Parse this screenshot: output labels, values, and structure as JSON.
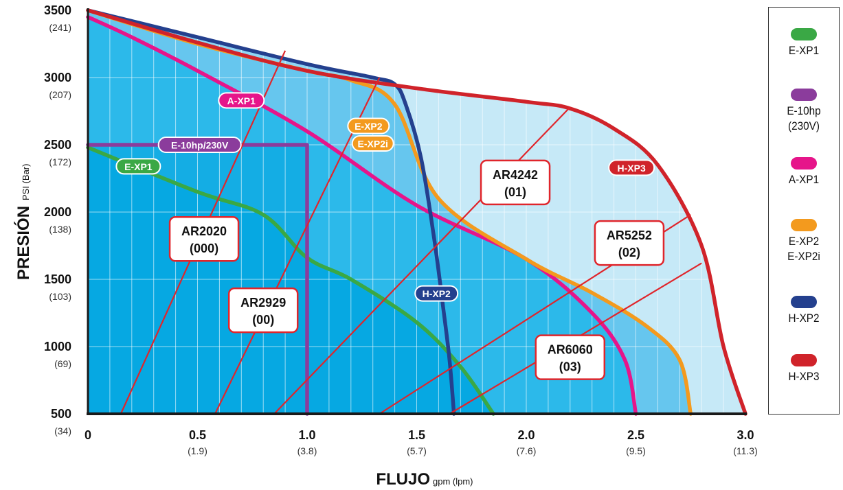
{
  "chart_data": {
    "type": "line",
    "xlabel": "FLUJO",
    "xunit": "gpm (lpm)",
    "ylabel": "PRESIÓN",
    "yunit": "PSI (Bar)",
    "xlim": [
      0,
      3.0
    ],
    "ylim": [
      500,
      3500
    ],
    "x_ticks": [
      {
        "value": 0,
        "label": "0",
        "sub": ""
      },
      {
        "value": 0.5,
        "label": "0.5",
        "sub": "(1.9)"
      },
      {
        "value": 1.0,
        "label": "1.0",
        "sub": "(3.8)"
      },
      {
        "value": 1.5,
        "label": "1.5",
        "sub": "(5.7)"
      },
      {
        "value": 2.0,
        "label": "2.0",
        "sub": "(7.6)"
      },
      {
        "value": 2.5,
        "label": "2.5",
        "sub": "(9.5)"
      },
      {
        "value": 3.0,
        "label": "3.0",
        "sub": "(11.3)"
      }
    ],
    "y_ticks": [
      {
        "value": 500,
        "label": "500",
        "sub": "(34)"
      },
      {
        "value": 1000,
        "label": "1000",
        "sub": "(69)"
      },
      {
        "value": 1500,
        "label": "1500",
        "sub": "(103)"
      },
      {
        "value": 2000,
        "label": "2000",
        "sub": "(138)"
      },
      {
        "value": 2500,
        "label": "2500",
        "sub": "(172)"
      },
      {
        "value": 3000,
        "label": "3000",
        "sub": "(207)"
      },
      {
        "value": 3500,
        "label": "3500",
        "sub": "(241)"
      }
    ],
    "grid": true,
    "legend_position": "right",
    "series": [
      {
        "name": "H-XP3",
        "label": "H-XP3",
        "color": "#d0232a",
        "fill": "#c6e9f7",
        "x": [
          0,
          0.5,
          1.0,
          1.5,
          2.0,
          2.2,
          2.4,
          2.6,
          2.8,
          2.9,
          3.0
        ],
        "y": [
          3500,
          3260,
          3050,
          2920,
          2820,
          2770,
          2620,
          2350,
          1750,
          1000,
          500
        ]
      },
      {
        "name": "H-XP2",
        "label": "H-XP2",
        "color": "#24408e",
        "fill": "#8fd6f4",
        "x": [
          0,
          0.5,
          1.0,
          1.3,
          1.4,
          1.45,
          1.52,
          1.58,
          1.62,
          1.65,
          1.67
        ],
        "y": [
          3500,
          3300,
          3100,
          3000,
          2950,
          2800,
          2400,
          1800,
          1300,
          900,
          500
        ]
      },
      {
        "name": "E-XP2",
        "label": "E-XP2 / E-XP2i",
        "color": "#f39a1e",
        "fill": "#66c6ee",
        "x": [
          0,
          0.5,
          1.0,
          1.2,
          1.4,
          1.6,
          2.0,
          2.3,
          2.55,
          2.7,
          2.75
        ],
        "y": [
          3500,
          3250,
          3050,
          2980,
          2800,
          2100,
          1650,
          1400,
          1150,
          900,
          500
        ]
      },
      {
        "name": "A-XP1",
        "label": "A-XP1",
        "color": "#e6158a",
        "fill": "#2cb9ea",
        "x": [
          0,
          0.2,
          0.5,
          1.0,
          1.5,
          2.0,
          2.3,
          2.45,
          2.5
        ],
        "y": [
          3450,
          3300,
          3050,
          2600,
          2050,
          1650,
          1250,
          900,
          500
        ]
      },
      {
        "name": "E-10hp",
        "label": "E-10hp/230V",
        "color": "#8b3c9c",
        "fill": "#14ade4",
        "x": [
          0,
          1.0,
          1.0
        ],
        "y": [
          2500,
          2500,
          500
        ]
      },
      {
        "name": "E-XP1",
        "label": "E-XP1",
        "color": "#3aa845",
        "fill": "#06a8e2",
        "x": [
          0,
          0.5,
          0.8,
          1.0,
          1.2,
          1.5,
          1.7,
          1.85
        ],
        "y": [
          2480,
          2150,
          1980,
          1660,
          1500,
          1180,
          850,
          500
        ]
      }
    ],
    "nozzle_lines": [
      {
        "name": "AR2020",
        "label1": "AR2020",
        "label2": "(000)",
        "x": [
          0.15,
          0.9
        ],
        "y": [
          500,
          3200
        ]
      },
      {
        "name": "AR2929",
        "label1": "AR2929",
        "label2": "(00)",
        "x": [
          0.58,
          1.33
        ],
        "y": [
          500,
          3000
        ]
      },
      {
        "name": "AR4242",
        "label1": "AR4242",
        "label2": "(01)",
        "x": [
          0.85,
          2.2
        ],
        "y": [
          500,
          2780
        ]
      },
      {
        "name": "AR5252",
        "label1": "AR5252",
        "label2": "(02)",
        "x": [
          1.33,
          2.75
        ],
        "y": [
          500,
          1980
        ]
      },
      {
        "name": "AR6060",
        "label1": "AR6060",
        "label2": "(03)",
        "x": [
          1.65,
          2.8
        ],
        "y": [
          500,
          1620
        ]
      }
    ]
  },
  "legend": {
    "items": [
      {
        "label": "E-XP1",
        "color": "#3aa845"
      },
      {
        "label": "E-10hp\n(230V)",
        "color": "#8b3c9c"
      },
      {
        "label": "A-XP1",
        "color": "#e6158a"
      },
      {
        "label": "E-XP2\nE-XP2i",
        "color": "#f39a1e"
      },
      {
        "label": "H-XP2",
        "color": "#24408e"
      },
      {
        "label": "H-XP3",
        "color": "#d0232a"
      }
    ]
  },
  "in_chart_labels": {
    "A-XP1": "A-XP1",
    "E-10hp": "E-10hp/230V",
    "E-XP1": "E-XP1",
    "E-XP2": "E-XP2",
    "E-XP2i": "E-XP2i",
    "H-XP2": "H-XP2",
    "H-XP3": "H-XP3"
  }
}
